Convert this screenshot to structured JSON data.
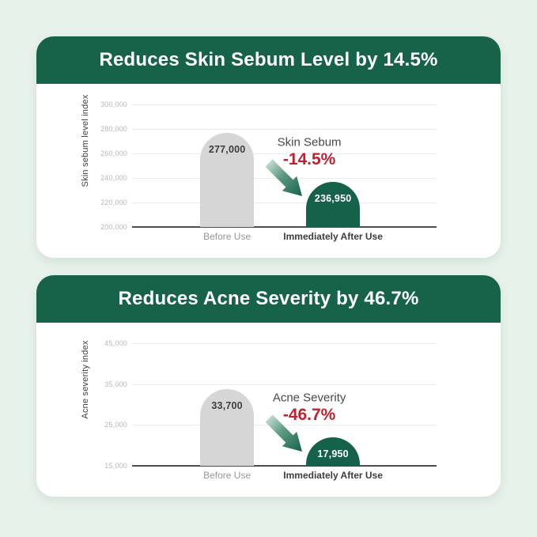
{
  "colors": {
    "background": "#e7f2ea",
    "card": "#ffffff",
    "header_green": "#166349",
    "bar_green": "#156149",
    "bar_gray": "#d6d6d6",
    "red": "#c0212e",
    "grid": "#ececec",
    "axis": "#4d4d4d",
    "tick": "#b9b6b6",
    "text_dark": "#3c3c3c",
    "text_gray": "#979797"
  },
  "cards": [
    {
      "title": "Reduces Skin Sebum Level by 14.5%"
    },
    {
      "title": "Reduces Acne Severity by 46.7%"
    }
  ],
  "chart_data": [
    {
      "type": "bar",
      "title": "Reduces Skin Sebum Level by 14.5%",
      "ylabel": "Skin sebum level index",
      "xlabel": "",
      "categories": [
        "Before Use",
        "Immediately After Use"
      ],
      "values": [
        277000,
        236950
      ],
      "value_labels": [
        "277,000",
        "236,950"
      ],
      "ylim": [
        200000,
        300000
      ],
      "yticks": [
        {
          "value": 300000,
          "label": "300,000"
        },
        {
          "value": 280000,
          "label": "280,000"
        },
        {
          "value": 260000,
          "label": "260,000"
        },
        {
          "value": 240000,
          "label": "240,000"
        },
        {
          "value": 220000,
          "label": "220,000"
        },
        {
          "value": 200000,
          "label": "200,000"
        }
      ],
      "grid": true,
      "legend": false,
      "bar_colors": [
        "#d6d6d6",
        "#156149"
      ],
      "annotation": {
        "label": "Skin Sebum",
        "delta": "-14.5%"
      }
    },
    {
      "type": "bar",
      "title": "Reduces Acne Severity by 46.7%",
      "ylabel": "Acne severity index",
      "xlabel": "",
      "categories": [
        "Before Use",
        "Immediately After Use"
      ],
      "values": [
        33700,
        17950
      ],
      "value_labels": [
        "33,700",
        "17,950"
      ],
      "ylim": [
        15000,
        45000
      ],
      "yticks": [
        {
          "value": 45000,
          "label": "45,000"
        },
        {
          "value": 35000,
          "label": "35,000"
        },
        {
          "value": 25000,
          "label": "25,000"
        },
        {
          "value": 15000,
          "label": "15,000"
        }
      ],
      "grid": true,
      "legend": false,
      "bar_colors": [
        "#d6d6d6",
        "#156149"
      ],
      "annotation": {
        "label": "Acne Severity",
        "delta": "-46.7%"
      }
    }
  ]
}
